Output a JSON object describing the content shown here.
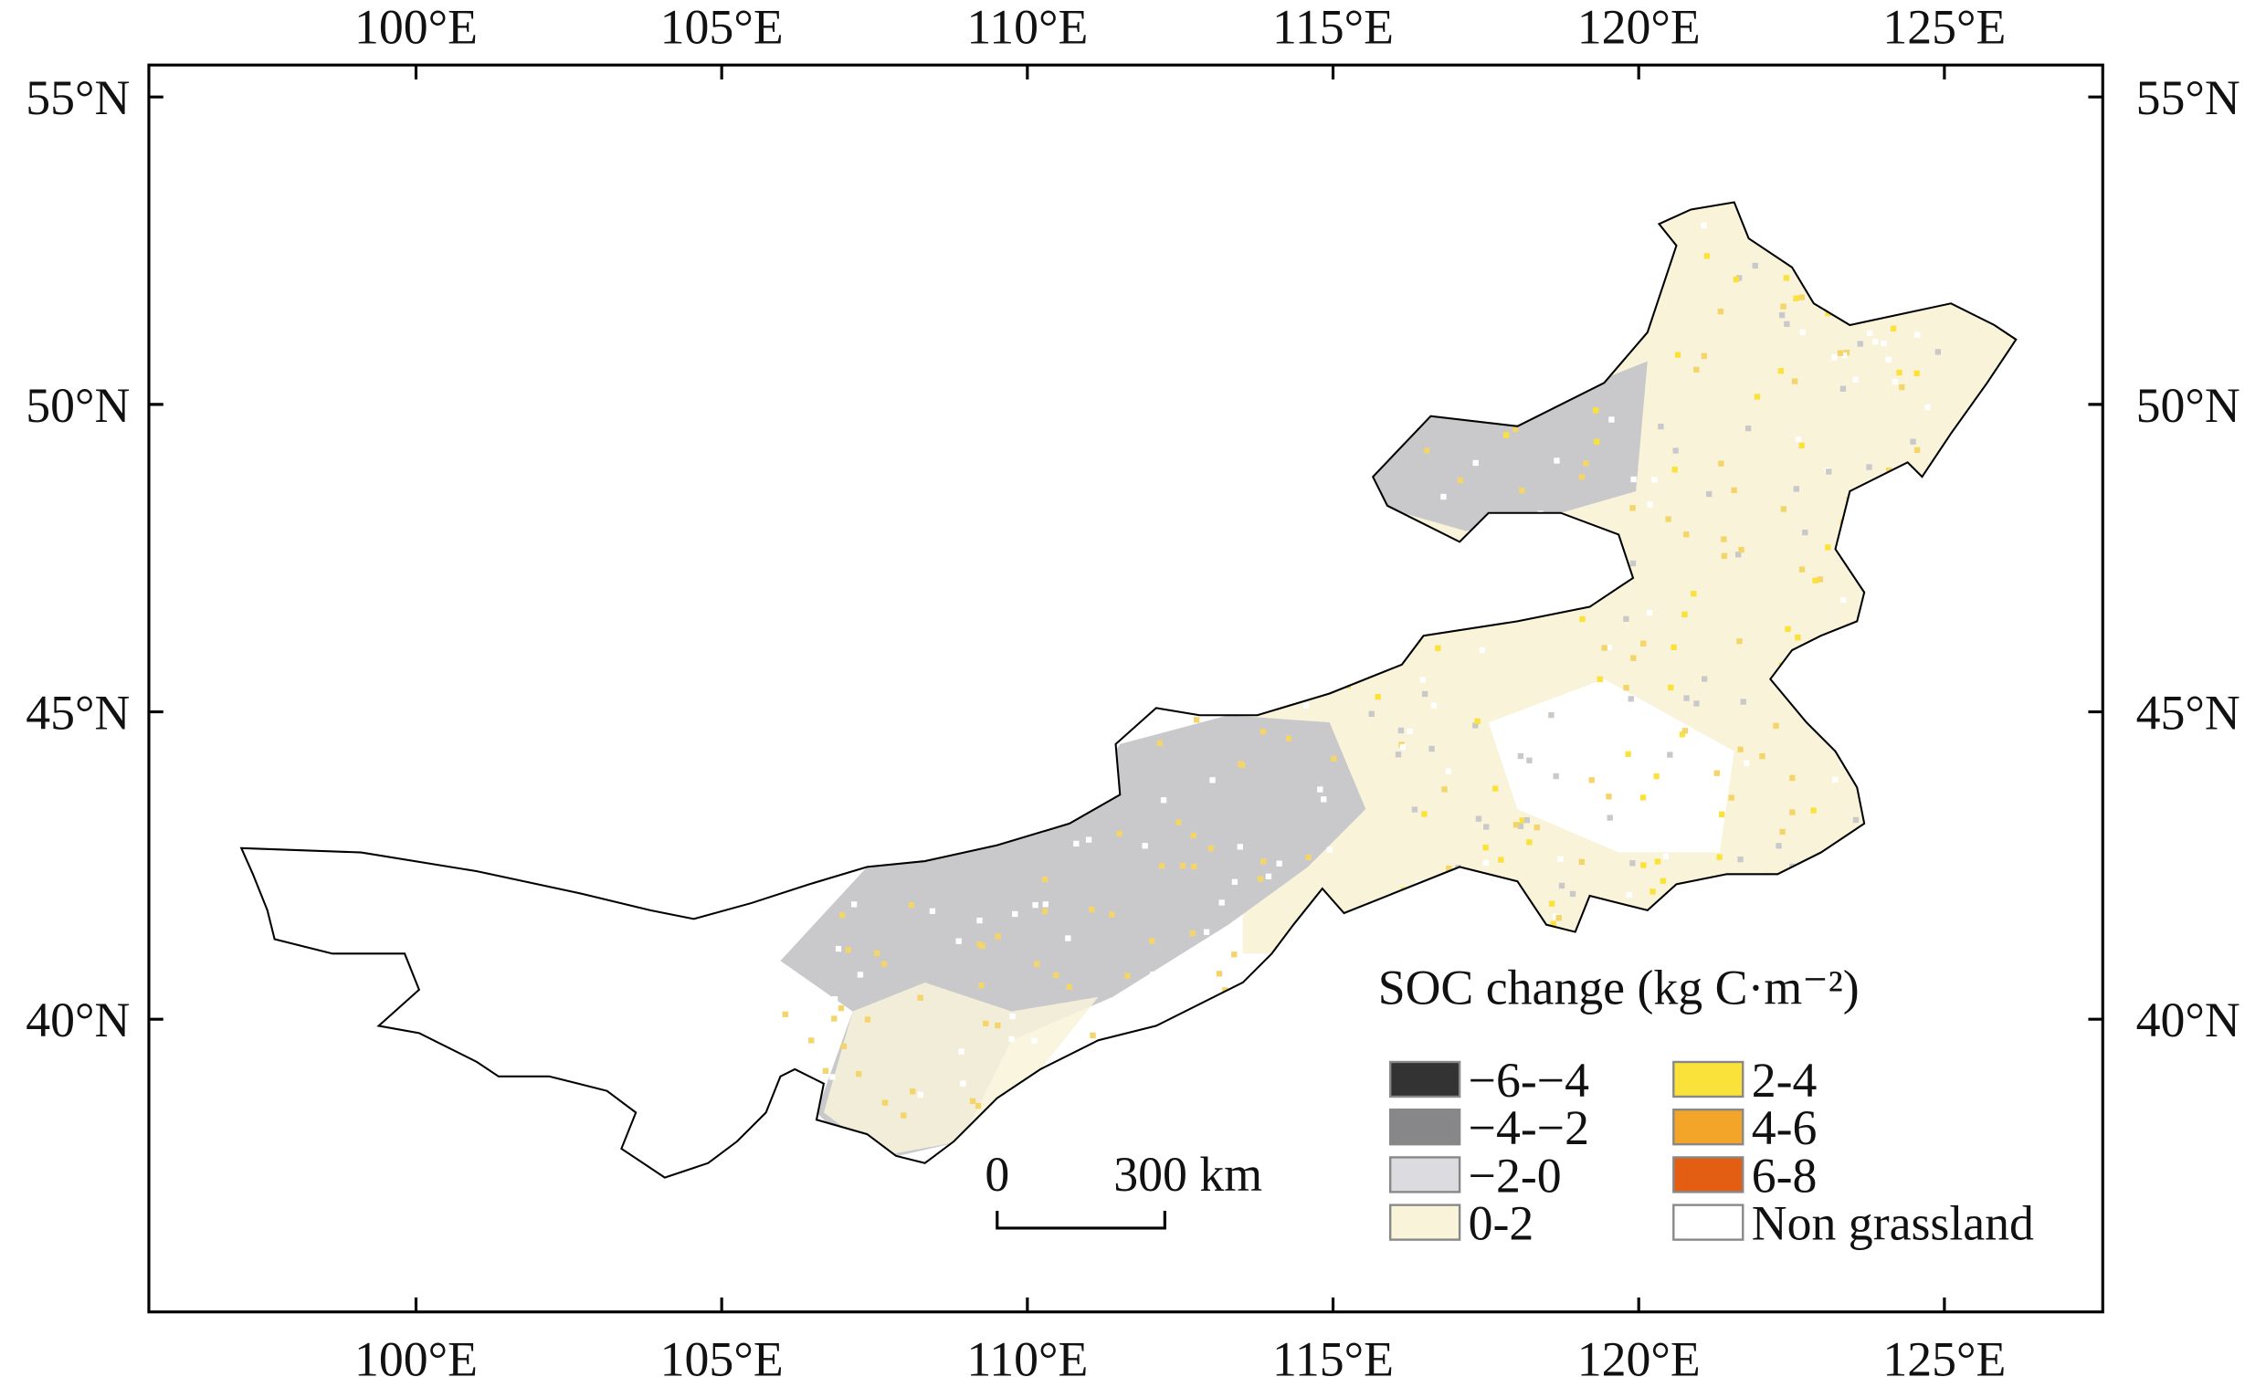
{
  "map": {
    "xlim": [
      95.63,
      127.59
    ],
    "ylim": [
      35.24,
      55.52
    ],
    "xticks": [
      {
        "value": 100,
        "label": "100°E"
      },
      {
        "value": 105,
        "label": "105°E"
      },
      {
        "value": 110,
        "label": "110°E"
      },
      {
        "value": 115,
        "label": "115°E"
      },
      {
        "value": 120,
        "label": "120°E"
      },
      {
        "value": 125,
        "label": "125°E"
      }
    ],
    "yticks": [
      {
        "value": 40,
        "label": "40°N"
      },
      {
        "value": 45,
        "label": "45°N"
      },
      {
        "value": 50,
        "label": "50°N"
      },
      {
        "value": 55,
        "label": "55°N"
      }
    ],
    "legend": {
      "title": "SOC change (kg C·m⁻²)",
      "items": [
        {
          "label": "−6-−4",
          "color": "#333333"
        },
        {
          "label": "−4-−2",
          "color": "#87878a"
        },
        {
          "label": "−2-0",
          "color": "#dcdce0"
        },
        {
          "label": "0-2",
          "color": "#f8f3d9"
        },
        {
          "label": "2-4",
          "color": "#fbe23a"
        },
        {
          "label": "4-6",
          "color": "#f3a52a"
        },
        {
          "label": "6-8",
          "color": "#e35d12"
        },
        {
          "label": "Non grassland",
          "color": "#ffffff"
        }
      ]
    },
    "scale_bar": {
      "labels": [
        "0",
        "300 km"
      ]
    }
  }
}
